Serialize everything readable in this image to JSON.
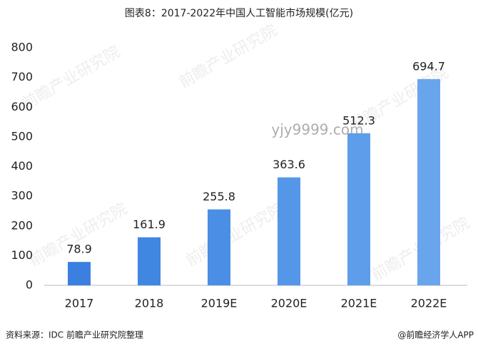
{
  "chart_data": {
    "type": "bar",
    "title": "图表8：2017-2022年中国人工智能市场规模(亿元)",
    "categories": [
      "2017",
      "2018",
      "2019E",
      "2020E",
      "2021E",
      "2022E"
    ],
    "values": [
      78.9,
      161.9,
      255.8,
      363.6,
      512.3,
      694.7
    ],
    "colors": [
      "#3b80e0",
      "#4087e2",
      "#4a8ee6",
      "#5496e8",
      "#5e9dea",
      "#69a5ec"
    ],
    "ylim": [
      0,
      800
    ],
    "yticks": [
      0,
      100,
      200,
      300,
      400,
      500,
      600,
      700,
      800
    ],
    "grid": false,
    "source": "资料来源：IDC 前瞻产业研究院整理",
    "credit": "@前瞻经济学人APP",
    "watermark": "yjy9999.com",
    "brand_watermark": "前瞻产业研究院"
  }
}
